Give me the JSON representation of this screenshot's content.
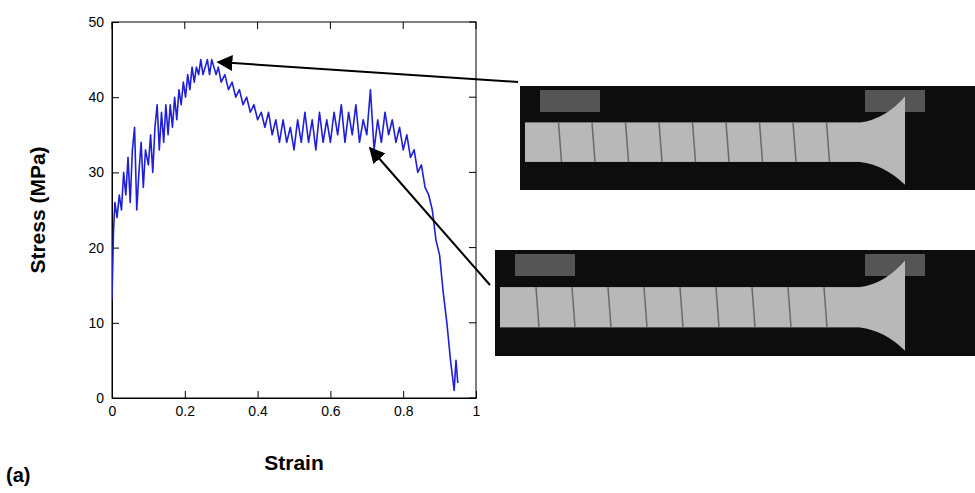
{
  "chart_data": {
    "type": "line",
    "xlabel": "Strain",
    "ylabel": "Stress (MPa)",
    "panel_label": "(a)",
    "color": "#1f1fd6",
    "xlim": [
      0,
      1
    ],
    "ylim": [
      0,
      50
    ],
    "xticks": [
      0,
      0.2,
      0.4,
      0.6,
      0.8,
      1
    ],
    "yticks": [
      0,
      10,
      20,
      30,
      40,
      50
    ],
    "x": [
      0,
      0.004,
      0.008,
      0.014,
      0.02,
      0.026,
      0.032,
      0.038,
      0.044,
      0.05,
      0.056,
      0.062,
      0.068,
      0.074,
      0.08,
      0.086,
      0.092,
      0.1,
      0.106,
      0.112,
      0.118,
      0.124,
      0.13,
      0.136,
      0.142,
      0.148,
      0.154,
      0.16,
      0.166,
      0.172,
      0.178,
      0.184,
      0.19,
      0.196,
      0.202,
      0.208,
      0.214,
      0.22,
      0.226,
      0.232,
      0.238,
      0.244,
      0.25,
      0.256,
      0.262,
      0.268,
      0.274,
      0.28,
      0.286,
      0.292,
      0.3,
      0.31,
      0.32,
      0.33,
      0.34,
      0.35,
      0.36,
      0.37,
      0.38,
      0.39,
      0.4,
      0.41,
      0.42,
      0.43,
      0.44,
      0.45,
      0.46,
      0.47,
      0.48,
      0.49,
      0.5,
      0.51,
      0.52,
      0.53,
      0.54,
      0.55,
      0.56,
      0.57,
      0.58,
      0.59,
      0.6,
      0.61,
      0.62,
      0.63,
      0.64,
      0.65,
      0.66,
      0.67,
      0.68,
      0.69,
      0.7,
      0.71,
      0.72,
      0.73,
      0.74,
      0.75,
      0.76,
      0.77,
      0.78,
      0.79,
      0.8,
      0.81,
      0.82,
      0.83,
      0.84,
      0.85,
      0.86,
      0.87,
      0.88,
      0.89,
      0.9,
      0.91,
      0.92,
      0.93,
      0.94,
      0.945,
      0.95
    ],
    "values": [
      13,
      22,
      26,
      24,
      27,
      25,
      30,
      27,
      32,
      26,
      33,
      36,
      25,
      30,
      34,
      28,
      33,
      31,
      35,
      30,
      36,
      39,
      33,
      38,
      34,
      39,
      35,
      39,
      36,
      40,
      37,
      41,
      39,
      42,
      40,
      43,
      41,
      44,
      42,
      44,
      43,
      45,
      43,
      44,
      45,
      43,
      45,
      44,
      43,
      44,
      42,
      43,
      41,
      42,
      40,
      41,
      39,
      40,
      38,
      39,
      37,
      38,
      36,
      38,
      35,
      37,
      34,
      37,
      34,
      36,
      33,
      37,
      34,
      38,
      34,
      37,
      33,
      38,
      34,
      37,
      34,
      38,
      35,
      39,
      34,
      38,
      35,
      39,
      34,
      37,
      35,
      41,
      33,
      37,
      34,
      38,
      35,
      37,
      34,
      36,
      33,
      35,
      32,
      33,
      30,
      31,
      28,
      27,
      25,
      21,
      19,
      14,
      10,
      5,
      1,
      5,
      2
    ]
  }
}
